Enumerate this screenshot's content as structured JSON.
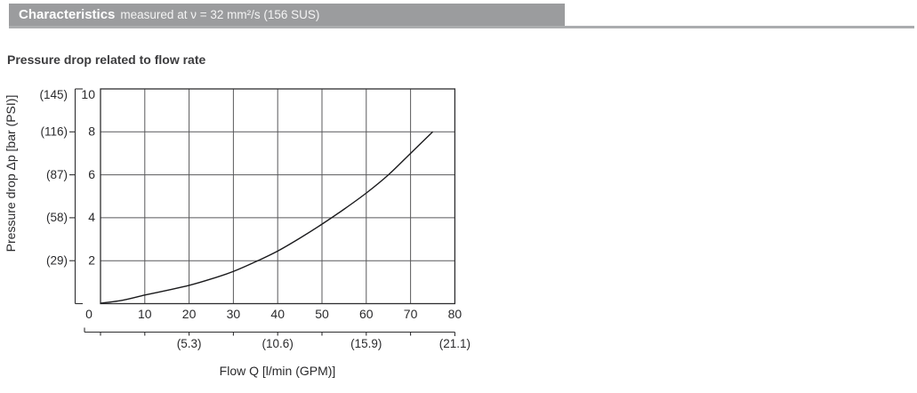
{
  "header": {
    "title": "Characteristics",
    "subtitle": "measured at ν = 32 mm²/s (156 SUS)",
    "bar_color": "#9b9c9e",
    "rule_color": "#abadaf"
  },
  "section": {
    "heading": "Pressure drop related to flow rate"
  },
  "chart_data": {
    "type": "line",
    "title": "Pressure drop related to flow rate",
    "xlabel": "Flow Q [l/min (GPM)]",
    "ylabel": "Pressure drop Δp [bar (PSI)]",
    "xlim": [
      0,
      80
    ],
    "ylim": [
      0,
      10
    ],
    "grid": true,
    "x_tick_labels": [
      "0",
      "10",
      "20",
      "30",
      "40",
      "50",
      "60",
      "70",
      "80"
    ],
    "x_tick_values": [
      0,
      10,
      20,
      30,
      40,
      50,
      60,
      70,
      80
    ],
    "x_gpm_labels": [
      "(5.3)",
      "(10.6)",
      "(15.9)",
      "(21.1)"
    ],
    "x_gpm_at": [
      20,
      40,
      60,
      80
    ],
    "y_bar_labels": [
      "10",
      "8",
      "6",
      "4",
      "2"
    ],
    "y_bar_values": [
      10,
      8,
      6,
      4,
      2
    ],
    "y_psi_labels": [
      "(145)",
      "(116)",
      "(87)",
      "(58)",
      "(29)"
    ],
    "series": [
      {
        "name": "pressure drop curve",
        "x": [
          0,
          5,
          10,
          15,
          20,
          25,
          30,
          35,
          40,
          45,
          50,
          55,
          60,
          65,
          70,
          75
        ],
        "y": [
          0.02,
          0.16,
          0.4,
          0.62,
          0.85,
          1.15,
          1.5,
          1.95,
          2.45,
          3.05,
          3.7,
          4.4,
          5.15,
          6.0,
          7.0,
          8.0
        ]
      }
    ],
    "colors": {
      "grid": "#59595b",
      "border": "#2e2e30",
      "curve": "#1a1a1c"
    }
  }
}
